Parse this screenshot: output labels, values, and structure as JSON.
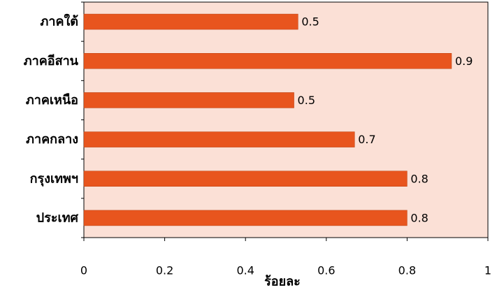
{
  "chart_data": {
    "type": "bar",
    "orientation": "horizontal",
    "categories": [
      "ภาคใต้",
      "ภาคอีสาน",
      "ภาคเหนือ",
      "ภาคกลาง",
      "กรุงเทพฯ",
      "ประเทศ"
    ],
    "values": [
      0.53,
      0.91,
      0.52,
      0.67,
      0.8,
      0.8
    ],
    "value_labels": [
      "0.5",
      "0.9",
      "0.5",
      "0.7",
      "0.8",
      "0.8"
    ],
    "xlabel": "ร้อยละ",
    "xlim": [
      0,
      1
    ],
    "x_ticks": [
      0,
      0.2,
      0.4,
      0.6,
      0.8,
      1
    ],
    "x_tick_labels": [
      "0",
      "0.2",
      "0.4",
      "0.6",
      "0.8",
      "1"
    ],
    "grid": false,
    "colors": {
      "bar": "#e8551e",
      "bar_stroke": "#b8400f",
      "plot_background": "#fbe0d6",
      "axis": "#000000"
    }
  }
}
